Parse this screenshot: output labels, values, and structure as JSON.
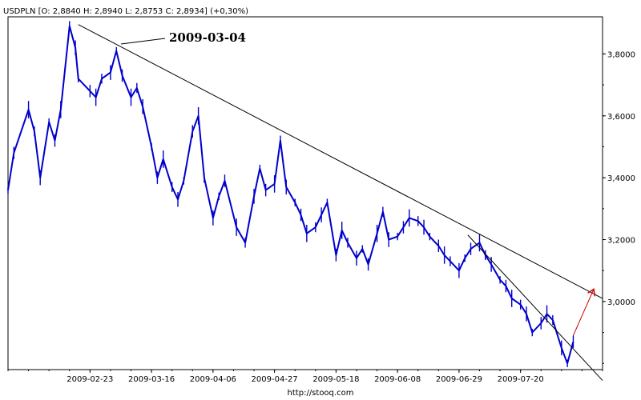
{
  "chart_data": {
    "type": "line",
    "title": "USDPLN [O: 2,8840  H: 2,8940  L: 2,8753  C: 2,8934]  (+0,30%)",
    "source": "http://stooq.com",
    "annotation": "2009-03-04",
    "x_tick_labels": [
      "2009-02-23",
      "2009-03-16",
      "2009-04-06",
      "2009-04-27",
      "2009-05-18",
      "2009-06-08",
      "2009-06-29",
      "2009-07-20"
    ],
    "y_tick_labels": [
      "3,8000",
      "3,6000",
      "3,4000",
      "3,2000",
      "3,0000"
    ],
    "y_tick_values": [
      3.8,
      3.6,
      3.4,
      3.2,
      3.0
    ],
    "ylim": [
      2.78,
      3.92
    ],
    "x_range": [
      "2009-01-26",
      "2009-08-17"
    ],
    "grid": false,
    "series": [
      {
        "color": "#0000cc",
        "x": [
          "2009-01-26",
          "2009-01-28",
          "2009-02-02",
          "2009-02-04",
          "2009-02-06",
          "2009-02-09",
          "2009-02-11",
          "2009-02-13",
          "2009-02-16",
          "2009-02-18",
          "2009-02-19",
          "2009-02-23",
          "2009-02-25",
          "2009-02-27",
          "2009-03-02",
          "2009-03-04",
          "2009-03-06",
          "2009-03-09",
          "2009-03-11",
          "2009-03-13",
          "2009-03-16",
          "2009-03-18",
          "2009-03-20",
          "2009-03-23",
          "2009-03-25",
          "2009-03-27",
          "2009-03-30",
          "2009-04-01",
          "2009-04-03",
          "2009-04-06",
          "2009-04-08",
          "2009-04-10",
          "2009-04-14",
          "2009-04-17",
          "2009-04-20",
          "2009-04-22",
          "2009-04-24",
          "2009-04-27",
          "2009-04-29",
          "2009-05-01",
          "2009-05-04",
          "2009-05-06",
          "2009-05-08",
          "2009-05-11",
          "2009-05-13",
          "2009-05-15",
          "2009-05-18",
          "2009-05-20",
          "2009-05-22",
          "2009-05-25",
          "2009-05-27",
          "2009-05-29",
          "2009-06-01",
          "2009-06-03",
          "2009-06-05",
          "2009-06-08",
          "2009-06-10",
          "2009-06-12",
          "2009-06-15",
          "2009-06-17",
          "2009-06-19",
          "2009-06-22",
          "2009-06-24",
          "2009-06-26",
          "2009-06-29",
          "2009-07-01",
          "2009-07-03",
          "2009-07-06",
          "2009-07-08",
          "2009-07-10",
          "2009-07-13",
          "2009-07-15",
          "2009-07-17",
          "2009-07-20",
          "2009-07-22",
          "2009-07-24",
          "2009-07-27",
          "2009-07-29",
          "2009-07-31",
          "2009-08-03",
          "2009-08-05",
          "2009-08-07"
        ],
        "y": [
          3.36,
          3.48,
          3.62,
          3.55,
          3.4,
          3.58,
          3.52,
          3.62,
          3.89,
          3.82,
          3.72,
          3.68,
          3.66,
          3.72,
          3.74,
          3.81,
          3.73,
          3.66,
          3.69,
          3.63,
          3.5,
          3.4,
          3.46,
          3.37,
          3.33,
          3.39,
          3.55,
          3.6,
          3.4,
          3.27,
          3.34,
          3.39,
          3.24,
          3.19,
          3.34,
          3.43,
          3.36,
          3.38,
          3.52,
          3.37,
          3.32,
          3.28,
          3.22,
          3.24,
          3.28,
          3.32,
          3.15,
          3.23,
          3.19,
          3.14,
          3.17,
          3.12,
          3.22,
          3.29,
          3.2,
          3.21,
          3.24,
          3.27,
          3.26,
          3.24,
          3.21,
          3.18,
          3.15,
          3.13,
          3.1,
          3.14,
          3.17,
          3.19,
          3.15,
          3.12,
          3.07,
          3.05,
          3.01,
          2.99,
          2.96,
          2.9,
          2.93,
          2.96,
          2.94,
          2.85,
          2.8,
          2.87
        ]
      }
    ],
    "trendlines": [
      {
        "color": "#000000",
        "from": {
          "x": "2009-02-19",
          "y": 3.895
        },
        "to": {
          "x": "2009-08-17",
          "y": 3.01
        }
      },
      {
        "color": "#000000",
        "from": {
          "x": "2009-07-02",
          "y": 3.215
        },
        "to": {
          "x": "2009-08-17",
          "y": 2.745
        }
      },
      {
        "color": "#cc0000",
        "from": {
          "x": "2009-08-07",
          "y": 2.89
        },
        "to": {
          "x": "2009-08-14",
          "y": 3.04
        }
      }
    ]
  }
}
